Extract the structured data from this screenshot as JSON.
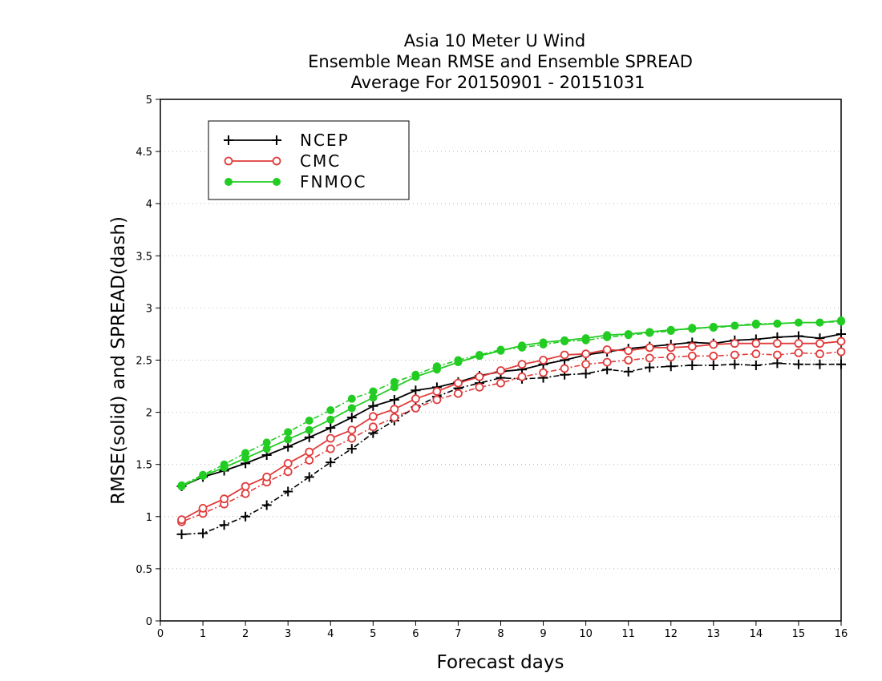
{
  "chart_data": {
    "type": "line",
    "title": [
      "Asia 10 Meter U Wind",
      "Ensemble Mean RMSE and Ensemble SPREAD",
      "Average For 20150901 - 20151031"
    ],
    "xlabel": "Forecast days",
    "ylabel": "RMSE(solid) and SPREAD(dash)",
    "xlim": [
      0,
      16
    ],
    "ylim": [
      0,
      5
    ],
    "x_ticks": [
      "0",
      "1",
      "2",
      "3",
      "4",
      "5",
      "6",
      "7",
      "8",
      "9",
      "10",
      "11",
      "12",
      "13",
      "14",
      "15",
      "16"
    ],
    "y_ticks": [
      "0",
      "0.5",
      "1",
      "1.5",
      "2",
      "2.5",
      "3",
      "3.5",
      "4",
      "4.5",
      "5"
    ],
    "grid": "horizontal dotted",
    "legend_position": "top-left",
    "x": [
      0.5,
      1,
      1.5,
      2,
      2.5,
      3,
      3.5,
      4,
      4.5,
      5,
      5.5,
      6,
      6.5,
      7,
      7.5,
      8,
      8.5,
      9,
      9.5,
      10,
      10.5,
      11,
      11.5,
      12,
      12.5,
      13,
      13.5,
      14,
      14.5,
      15,
      15.5,
      16
    ],
    "series": [
      {
        "name": "NCEP",
        "color": "#000000",
        "marker": "plus",
        "rmse": [
          1.29,
          1.38,
          1.44,
          1.51,
          1.59,
          1.67,
          1.76,
          1.85,
          1.95,
          2.06,
          2.12,
          2.21,
          2.24,
          2.29,
          2.35,
          2.39,
          2.41,
          2.46,
          2.5,
          2.55,
          2.58,
          2.61,
          2.63,
          2.65,
          2.67,
          2.66,
          2.69,
          2.7,
          2.72,
          2.73,
          2.71,
          2.75
        ],
        "spread": [
          0.83,
          0.84,
          0.92,
          1.0,
          1.11,
          1.24,
          1.38,
          1.52,
          1.65,
          1.8,
          1.92,
          2.05,
          2.15,
          2.23,
          2.28,
          2.33,
          2.32,
          2.33,
          2.36,
          2.37,
          2.41,
          2.39,
          2.43,
          2.44,
          2.45,
          2.45,
          2.46,
          2.45,
          2.47,
          2.46,
          2.46,
          2.46
        ]
      },
      {
        "name": "CMC",
        "color": "#e03c3c",
        "marker": "open-circle",
        "rmse": [
          0.97,
          1.08,
          1.17,
          1.29,
          1.38,
          1.51,
          1.62,
          1.75,
          1.83,
          1.96,
          2.03,
          2.13,
          2.2,
          2.28,
          2.34,
          2.4,
          2.46,
          2.5,
          2.55,
          2.56,
          2.6,
          2.59,
          2.62,
          2.62,
          2.63,
          2.65,
          2.66,
          2.66,
          2.66,
          2.66,
          2.66,
          2.68
        ],
        "spread": [
          0.95,
          1.03,
          1.12,
          1.22,
          1.33,
          1.43,
          1.54,
          1.65,
          1.75,
          1.86,
          1.95,
          2.04,
          2.12,
          2.18,
          2.24,
          2.28,
          2.34,
          2.38,
          2.42,
          2.46,
          2.48,
          2.5,
          2.52,
          2.53,
          2.54,
          2.54,
          2.55,
          2.56,
          2.55,
          2.57,
          2.56,
          2.58
        ]
      },
      {
        "name": "FNMOC",
        "color": "#22cc22",
        "marker": "filled-circle",
        "rmse": [
          1.29,
          1.39,
          1.47,
          1.56,
          1.65,
          1.74,
          1.83,
          1.93,
          2.04,
          2.14,
          2.24,
          2.34,
          2.41,
          2.48,
          2.54,
          2.59,
          2.64,
          2.67,
          2.69,
          2.71,
          2.74,
          2.75,
          2.77,
          2.79,
          2.8,
          2.82,
          2.83,
          2.84,
          2.85,
          2.86,
          2.86,
          2.88
        ],
        "spread": [
          1.3,
          1.4,
          1.5,
          1.61,
          1.71,
          1.81,
          1.92,
          2.02,
          2.13,
          2.2,
          2.29,
          2.36,
          2.44,
          2.5,
          2.55,
          2.6,
          2.62,
          2.65,
          2.68,
          2.69,
          2.72,
          2.74,
          2.76,
          2.78,
          2.81,
          2.81,
          2.83,
          2.85,
          2.85,
          2.86,
          2.86,
          2.87
        ]
      }
    ]
  }
}
